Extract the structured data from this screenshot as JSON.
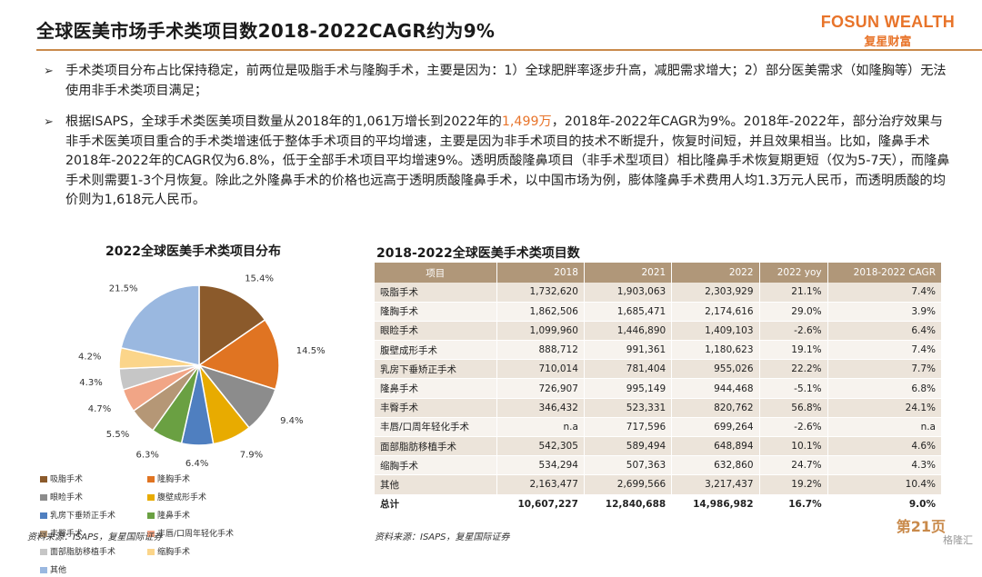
{
  "header": {
    "title": "全球医美市场手术类项目数2018-2022CAGR约为9%",
    "logo_en": "FOSUN WEALTH",
    "logo_cn": "复星财富"
  },
  "bullets": [
    {
      "pre": "手术类项目分布占比保持稳定，前两位是吸脂手术与隆胸手术，主要是因为：1）全球肥胖率逐步升高，减肥需求增大；2）部分医美需求（如隆胸等）无法使用非手术类项目满足；",
      "hl": "",
      "post": ""
    },
    {
      "pre": "根据ISAPS，全球手术类医美项目数量从2018年的1,061万增长到2022年的",
      "hl": "1,499万",
      "post": "，2018年-2022年CAGR为9%。2018年-2022年，部分治疗效果与非手术医美项目重合的手术类增速低于整体手术项目的平均增速，主要是因为非手术项目的技术不断提升，恢复时间短，并且效果相当。比如，隆鼻手术2018年-2022年的CAGR仅为6.8%，低于全部手术项目平均增速9%。透明质酸隆鼻项目（非手术型项目）相比隆鼻手术恢复期更短（仅为5-7天），而隆鼻手术则需要1-3个月恢复。除此之外隆鼻手术的价格也远高于透明质酸隆鼻手术，以中国市场为例，膨体隆鼻手术费用人均1.3万元人民币，而透明质酸的均价则为1,618元人民币。"
    }
  ],
  "chart_data": {
    "type": "pie",
    "title": "2022全球医美手术类项目分布",
    "slices": [
      {
        "name": "吸脂手术",
        "value": 15.4,
        "label": "15.4%",
        "color": "#8b5a2b"
      },
      {
        "name": "隆胸手术",
        "value": 14.5,
        "label": "14.5%",
        "color": "#e07422"
      },
      {
        "name": "眼睑手术",
        "value": 9.4,
        "label": "9.4%",
        "color": "#8c8c8c"
      },
      {
        "name": "腹壁成形手术",
        "value": 7.9,
        "label": "7.9%",
        "color": "#e8ab00"
      },
      {
        "name": "乳房下垂矫正手术",
        "value": 6.4,
        "label": "6.4%",
        "color": "#4f7fc0"
      },
      {
        "name": "隆鼻手术",
        "value": 6.3,
        "label": "6.3%",
        "color": "#6aa042"
      },
      {
        "name": "丰臀手术",
        "value": 5.5,
        "label": "5.5%",
        "color": "#b59776"
      },
      {
        "name": "丰唇/口周年轻化手术",
        "value": 4.7,
        "label": "4.7%",
        "color": "#f1a586"
      },
      {
        "name": "面部脂肪移植手术",
        "value": 4.3,
        "label": "4.3%",
        "color": "#c6c6c6"
      },
      {
        "name": "缩胸手术",
        "value": 4.2,
        "label": "4.2%",
        "color": "#fbd58a"
      },
      {
        "name": "其他",
        "value": 21.5,
        "label": "21.5%",
        "color": "#9ab8e0"
      }
    ]
  },
  "table": {
    "title": "2018-2022全球医美手术类项目数",
    "headers": [
      "项目",
      "2018",
      "2021",
      "2022",
      "2022 yoy",
      "2018-2022 CAGR"
    ],
    "rows": [
      [
        "吸脂手术",
        "1,732,620",
        "1,903,063",
        "2,303,929",
        "21.1%",
        "7.4%"
      ],
      [
        "隆胸手术",
        "1,862,506",
        "1,685,471",
        "2,174,616",
        "29.0%",
        "3.9%"
      ],
      [
        "眼睑手术",
        "1,099,960",
        "1,446,890",
        "1,409,103",
        "-2.6%",
        "6.4%"
      ],
      [
        "腹壁成形手术",
        "888,712",
        "991,361",
        "1,180,623",
        "19.1%",
        "7.4%"
      ],
      [
        "乳房下垂矫正手术",
        "710,014",
        "781,404",
        "955,026",
        "22.2%",
        "7.7%"
      ],
      [
        "隆鼻手术",
        "726,907",
        "995,149",
        "944,468",
        "-5.1%",
        "6.8%"
      ],
      [
        "丰臀手术",
        "346,432",
        "523,331",
        "820,762",
        "56.8%",
        "24.1%"
      ],
      [
        "丰唇/口周年轻化手术",
        "n.a",
        "717,596",
        "699,264",
        "-2.6%",
        "n.a"
      ],
      [
        "面部脂肪移植手术",
        "542,305",
        "589,494",
        "648,894",
        "10.1%",
        "4.6%"
      ],
      [
        "缩胸手术",
        "534,294",
        "507,363",
        "632,860",
        "24.7%",
        "4.3%"
      ],
      [
        "其他",
        "2,163,477",
        "2,699,566",
        "3,217,437",
        "19.2%",
        "10.4%"
      ]
    ],
    "total": [
      "总计",
      "10,607,227",
      "12,840,688",
      "14,986,982",
      "16.7%",
      "9.0%"
    ]
  },
  "footer": {
    "source_left": "资料来源：ISAPS，复星国际证券",
    "source_right": "资料来源：ISAPS，复星国际证券",
    "page": "第21页",
    "watermark": "格隆汇"
  }
}
